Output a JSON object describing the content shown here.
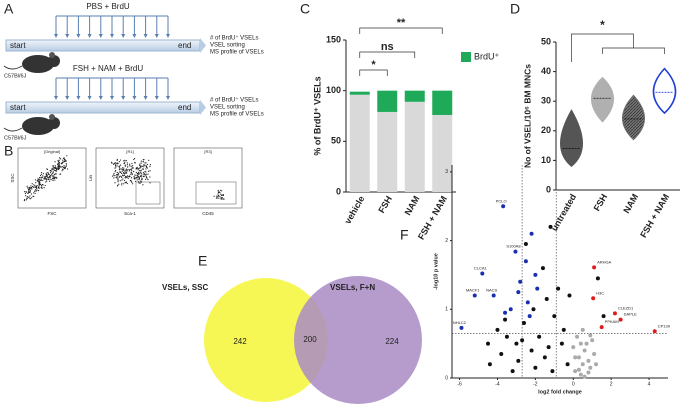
{
  "panel_labels": [
    "A",
    "B",
    "C",
    "D",
    "E",
    "F"
  ],
  "schematic": [
    {
      "treatment": "PBS + BrdU",
      "start": "start",
      "end": "end",
      "readouts": [
        "# of BrdU⁺ VSELs",
        "VSEL sorting",
        "MS profile of VSELs"
      ],
      "strain": "C57Bl/6J"
    },
    {
      "treatment": "FSH + NAM + BrdU",
      "start": "start",
      "end": "end",
      "readouts": [
        "# of BrdU⁺ VSELs",
        "VSEL sorting",
        "MS profile of VSELs"
      ],
      "strain": "C57Bl/6J"
    }
  ],
  "flow": [
    {
      "gate": "[Original]",
      "x": "FSC",
      "y": "SSC"
    },
    {
      "gate": "[R1]",
      "x": "Sca-1",
      "y": "Lin"
    },
    {
      "gate": "[R3]",
      "x": "CD45"
    }
  ],
  "chart_data": [
    {
      "type": "bar",
      "stacked": true,
      "ylabel": "% of BrdU⁺ VSELs",
      "categories": [
        "vehicle",
        "FSH",
        "NAM",
        "FSH + NAM"
      ],
      "series": [
        {
          "color": "#d9d9d9",
          "values": [
            96,
            79,
            89,
            76
          ]
        },
        {
          "name": "BrdU⁺",
          "color": "#1faa59",
          "values": [
            3,
            21,
            11,
            24
          ]
        }
      ],
      "ylim": [
        0,
        150
      ],
      "yticks": [
        0,
        50,
        100,
        150
      ],
      "annotations": [
        "*",
        "ns",
        "**"
      ]
    },
    {
      "type": "violin",
      "ylabel": "No of VSEL/10⁶ BM MNCs",
      "categories": [
        "untreated",
        "FSH",
        "NAM",
        "FSH + NAM"
      ],
      "min": [
        8,
        23,
        17,
        26
      ],
      "median": [
        14,
        31,
        24,
        33
      ],
      "max": [
        27,
        38,
        32,
        41
      ],
      "colors": [
        "#555555",
        "#b0b0b0",
        "#6e6e6e",
        "#1f3fd6"
      ],
      "ylim": [
        0,
        50
      ],
      "yticks": [
        0,
        10,
        20,
        30,
        40,
        50
      ],
      "annotations": [
        "*"
      ]
    },
    {
      "type": "venn",
      "sets": [
        "VSELs, SSC",
        "VSELs, F+N"
      ],
      "values": [
        242,
        200,
        224
      ],
      "colors": [
        "#f5f542",
        "#a98bc4"
      ]
    },
    {
      "type": "scatter",
      "xlabel": "log2 fold change",
      "ylabel": "-log10 p value",
      "xlim": [
        -6.4,
        5
      ],
      "xticks": [
        -6,
        -4,
        -2,
        0,
        2,
        4
      ],
      "ylim": [
        0,
        3.1
      ],
      "yticks": [
        0,
        1,
        2,
        3
      ],
      "vlines": [
        -2.7,
        -0.9
      ],
      "hlines": [
        0.65
      ],
      "series": [
        {
          "color": "#1a2fb0",
          "x": [
            -3.7,
            -4.8,
            -3.05,
            -5.2,
            -4.2,
            -5.9,
            -2.2,
            -2.5,
            -2.8,
            -3.3,
            -2.0,
            -2.4,
            -3.6,
            -2.9,
            -2.3,
            -1.9
          ],
          "values": [
            2.5,
            1.52,
            1.84,
            1.2,
            1.2,
            0.73,
            2.1,
            1.7,
            1.4,
            1.0,
            1.5,
            1.1,
            0.95,
            1.25,
            0.9,
            1.3
          ],
          "point_labels": [
            "PCLO",
            "CLCA1",
            "S100A8",
            "MACF1",
            "NACS",
            "NHLC2",
            null,
            null,
            null,
            null,
            null,
            null,
            null,
            null,
            null,
            null
          ]
        },
        {
          "color": "#111111",
          "x": [
            -1.2,
            -4.0,
            -3.5,
            -3.0,
            -2.6,
            -2.2,
            -1.8,
            -1.5,
            -1.0,
            -0.6,
            -0.3,
            -4.5,
            -3.8,
            -2.9,
            -2.0,
            -1.3,
            -0.8,
            -2.5,
            -1.6,
            -3.2,
            -0.5,
            -1.1,
            -2.1,
            -3.6,
            -1.4,
            -0.2,
            1.3,
            1.6,
            -4.4,
            -2.7
          ],
          "values": [
            2.2,
            0.7,
            0.6,
            0.5,
            0.8,
            0.4,
            0.6,
            0.3,
            0.9,
            0.5,
            0.2,
            0.5,
            0.35,
            0.25,
            0.15,
            0.45,
            1.3,
            1.95,
            1.6,
            0.1,
            0.7,
            0.1,
            1.0,
            0.85,
            1.15,
            1.2,
            1.45,
            0.9,
            0.2,
            0.55
          ]
        },
        {
          "color": "#aaaaaa",
          "x": [
            0.1,
            0.3,
            0.5,
            0.7,
            0.9,
            1.1,
            0.2,
            0.4,
            0.6,
            0.8,
            1.0,
            0.0,
            0.5,
            0.3,
            0.8,
            1.2,
            0.6,
            0.4,
            0.1,
            0.9
          ],
          "values": [
            0.1,
            0.3,
            0.2,
            0.5,
            0.15,
            0.35,
            0.6,
            0.05,
            0.4,
            0.25,
            0.55,
            0.45,
            0.7,
            0.12,
            0.08,
            0.2,
            0.02,
            0.5,
            0.3,
            0.62
          ]
        },
        {
          "color": "#e01b1b",
          "x": [
            1.1,
            1.05,
            2.2,
            2.5,
            4.3,
            1.5
          ],
          "values": [
            1.61,
            1.16,
            0.94,
            0.85,
            0.68,
            0.74
          ],
          "point_labels": [
            "ARHGA",
            "H3C",
            "CLEZD1",
            "DAPLE",
            "CP139",
            "PPKAM"
          ]
        }
      ]
    }
  ]
}
